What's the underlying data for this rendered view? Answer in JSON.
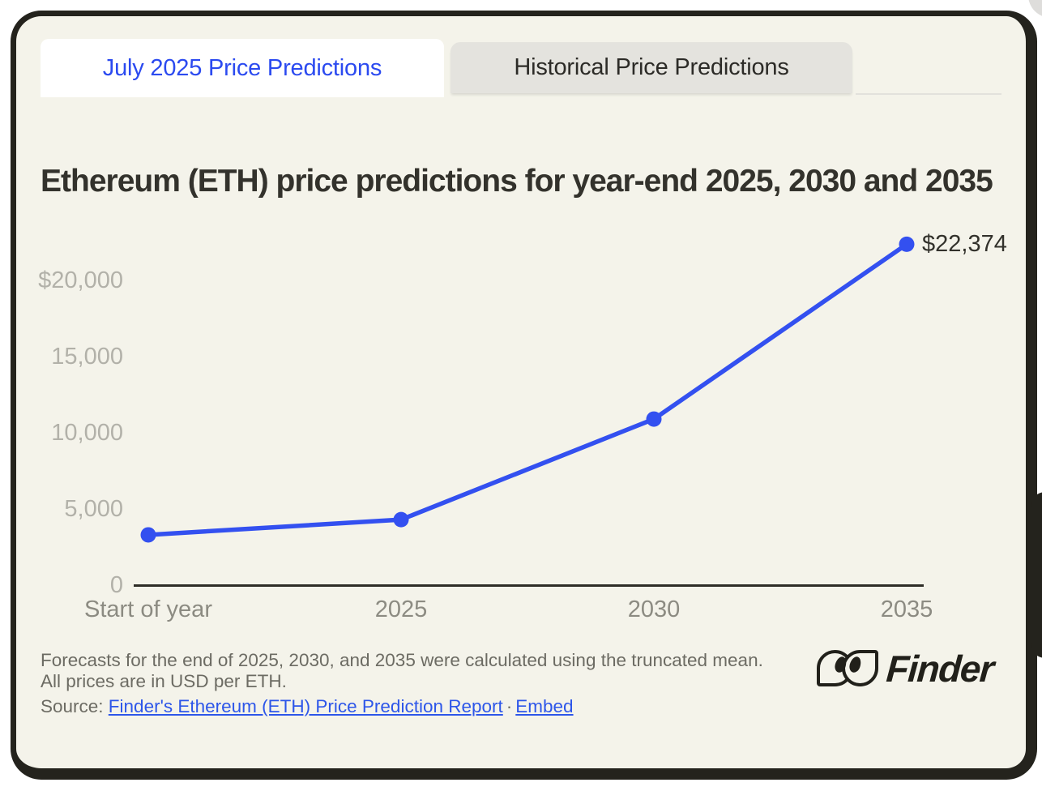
{
  "tabs": [
    {
      "label": "July 2025 Price Predictions",
      "active": true
    },
    {
      "label": "Historical Price Predictions",
      "active": false
    }
  ],
  "title": "Ethereum (ETH) price predictions for year-end 2025, 2030 and 2035",
  "chart_data": {
    "type": "line",
    "categories": [
      "Start of year",
      "2025",
      "2030",
      "2035"
    ],
    "values": [
      3300,
      4300,
      10900,
      22374
    ],
    "labeled_point_index": 3,
    "point_label": "$22,374",
    "y_ticks": [
      {
        "label": "$20,000",
        "value": 20000
      },
      {
        "label": "15,000",
        "value": 15000
      },
      {
        "label": "10,000",
        "value": 10000
      },
      {
        "label": "5,000",
        "value": 5000
      },
      {
        "label": "0",
        "value": 0
      }
    ],
    "ylim": [
      0,
      23500
    ],
    "grid": false,
    "legend": false,
    "line_color": "#3350f0",
    "axis_color": "#2e2d27"
  },
  "footer": {
    "note": "Forecasts for the end of 2025, 2030, and 2035 were calculated using the truncated mean. All prices are in USD per ETH.",
    "source_prefix": "Source: ",
    "source_link": "Finder's Ethereum (ETH) Price Prediction Report",
    "separator": "·",
    "embed_link": "Embed"
  },
  "brand": {
    "name": "Finder"
  },
  "colors": {
    "accent_blue": "#2b4af0",
    "link_blue": "#2d56e9",
    "card_background": "#f4f3ea",
    "frame_black": "#24231d",
    "inactive_tab": "#e4e3de"
  }
}
